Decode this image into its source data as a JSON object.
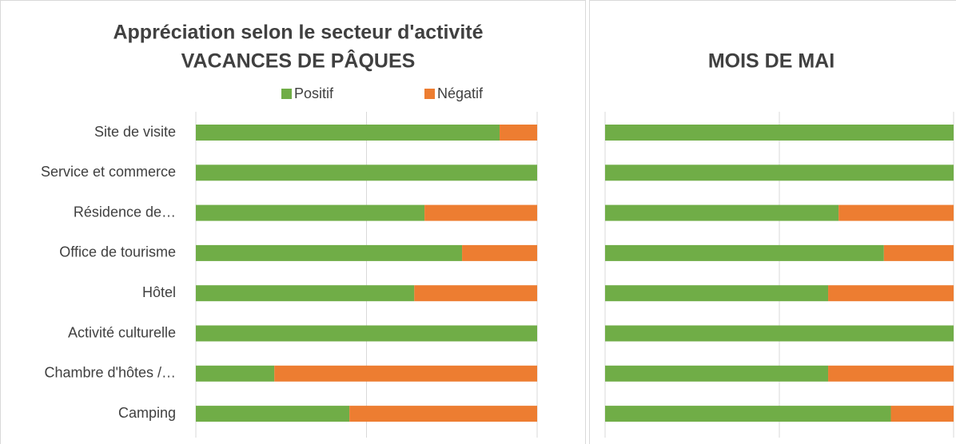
{
  "chart_data": [
    {
      "type": "bar",
      "orientation": "horizontal",
      "stacked": true,
      "title": "Appréciation selon le secteur d'activité",
      "subtitle": "VACANCES DE PÂQUES",
      "categories": [
        "Site de visite",
        "Service et commerce",
        "Résidence de…",
        "Office de tourisme",
        "Hôtel",
        "Activité culturelle",
        "Chambre d'hôtes /…",
        "Camping"
      ],
      "series": [
        {
          "name": "Positif",
          "color": "#70ad47",
          "values": [
            89,
            100,
            67,
            78,
            64,
            100,
            23,
            45
          ]
        },
        {
          "name": "Négatif",
          "color": "#ed7d31",
          "values": [
            11,
            0,
            33,
            22,
            36,
            0,
            77,
            55
          ]
        }
      ],
      "xlim": [
        0,
        100
      ],
      "xticks": [
        0,
        50,
        100
      ],
      "grid": true,
      "legend": "top"
    },
    {
      "type": "bar",
      "orientation": "horizontal",
      "stacked": true,
      "title": "MOIS DE MAI",
      "series": [
        {
          "name": "Positif",
          "color": "#70ad47",
          "values": [
            100,
            100,
            67,
            80,
            64,
            100,
            64,
            82
          ]
        },
        {
          "name": "Négatif",
          "color": "#ed7d31",
          "values": [
            0,
            0,
            33,
            20,
            36,
            0,
            36,
            18
          ]
        }
      ],
      "xlim": [
        0,
        100
      ],
      "xticks": [
        0,
        50,
        100
      ],
      "grid": true
    }
  ]
}
